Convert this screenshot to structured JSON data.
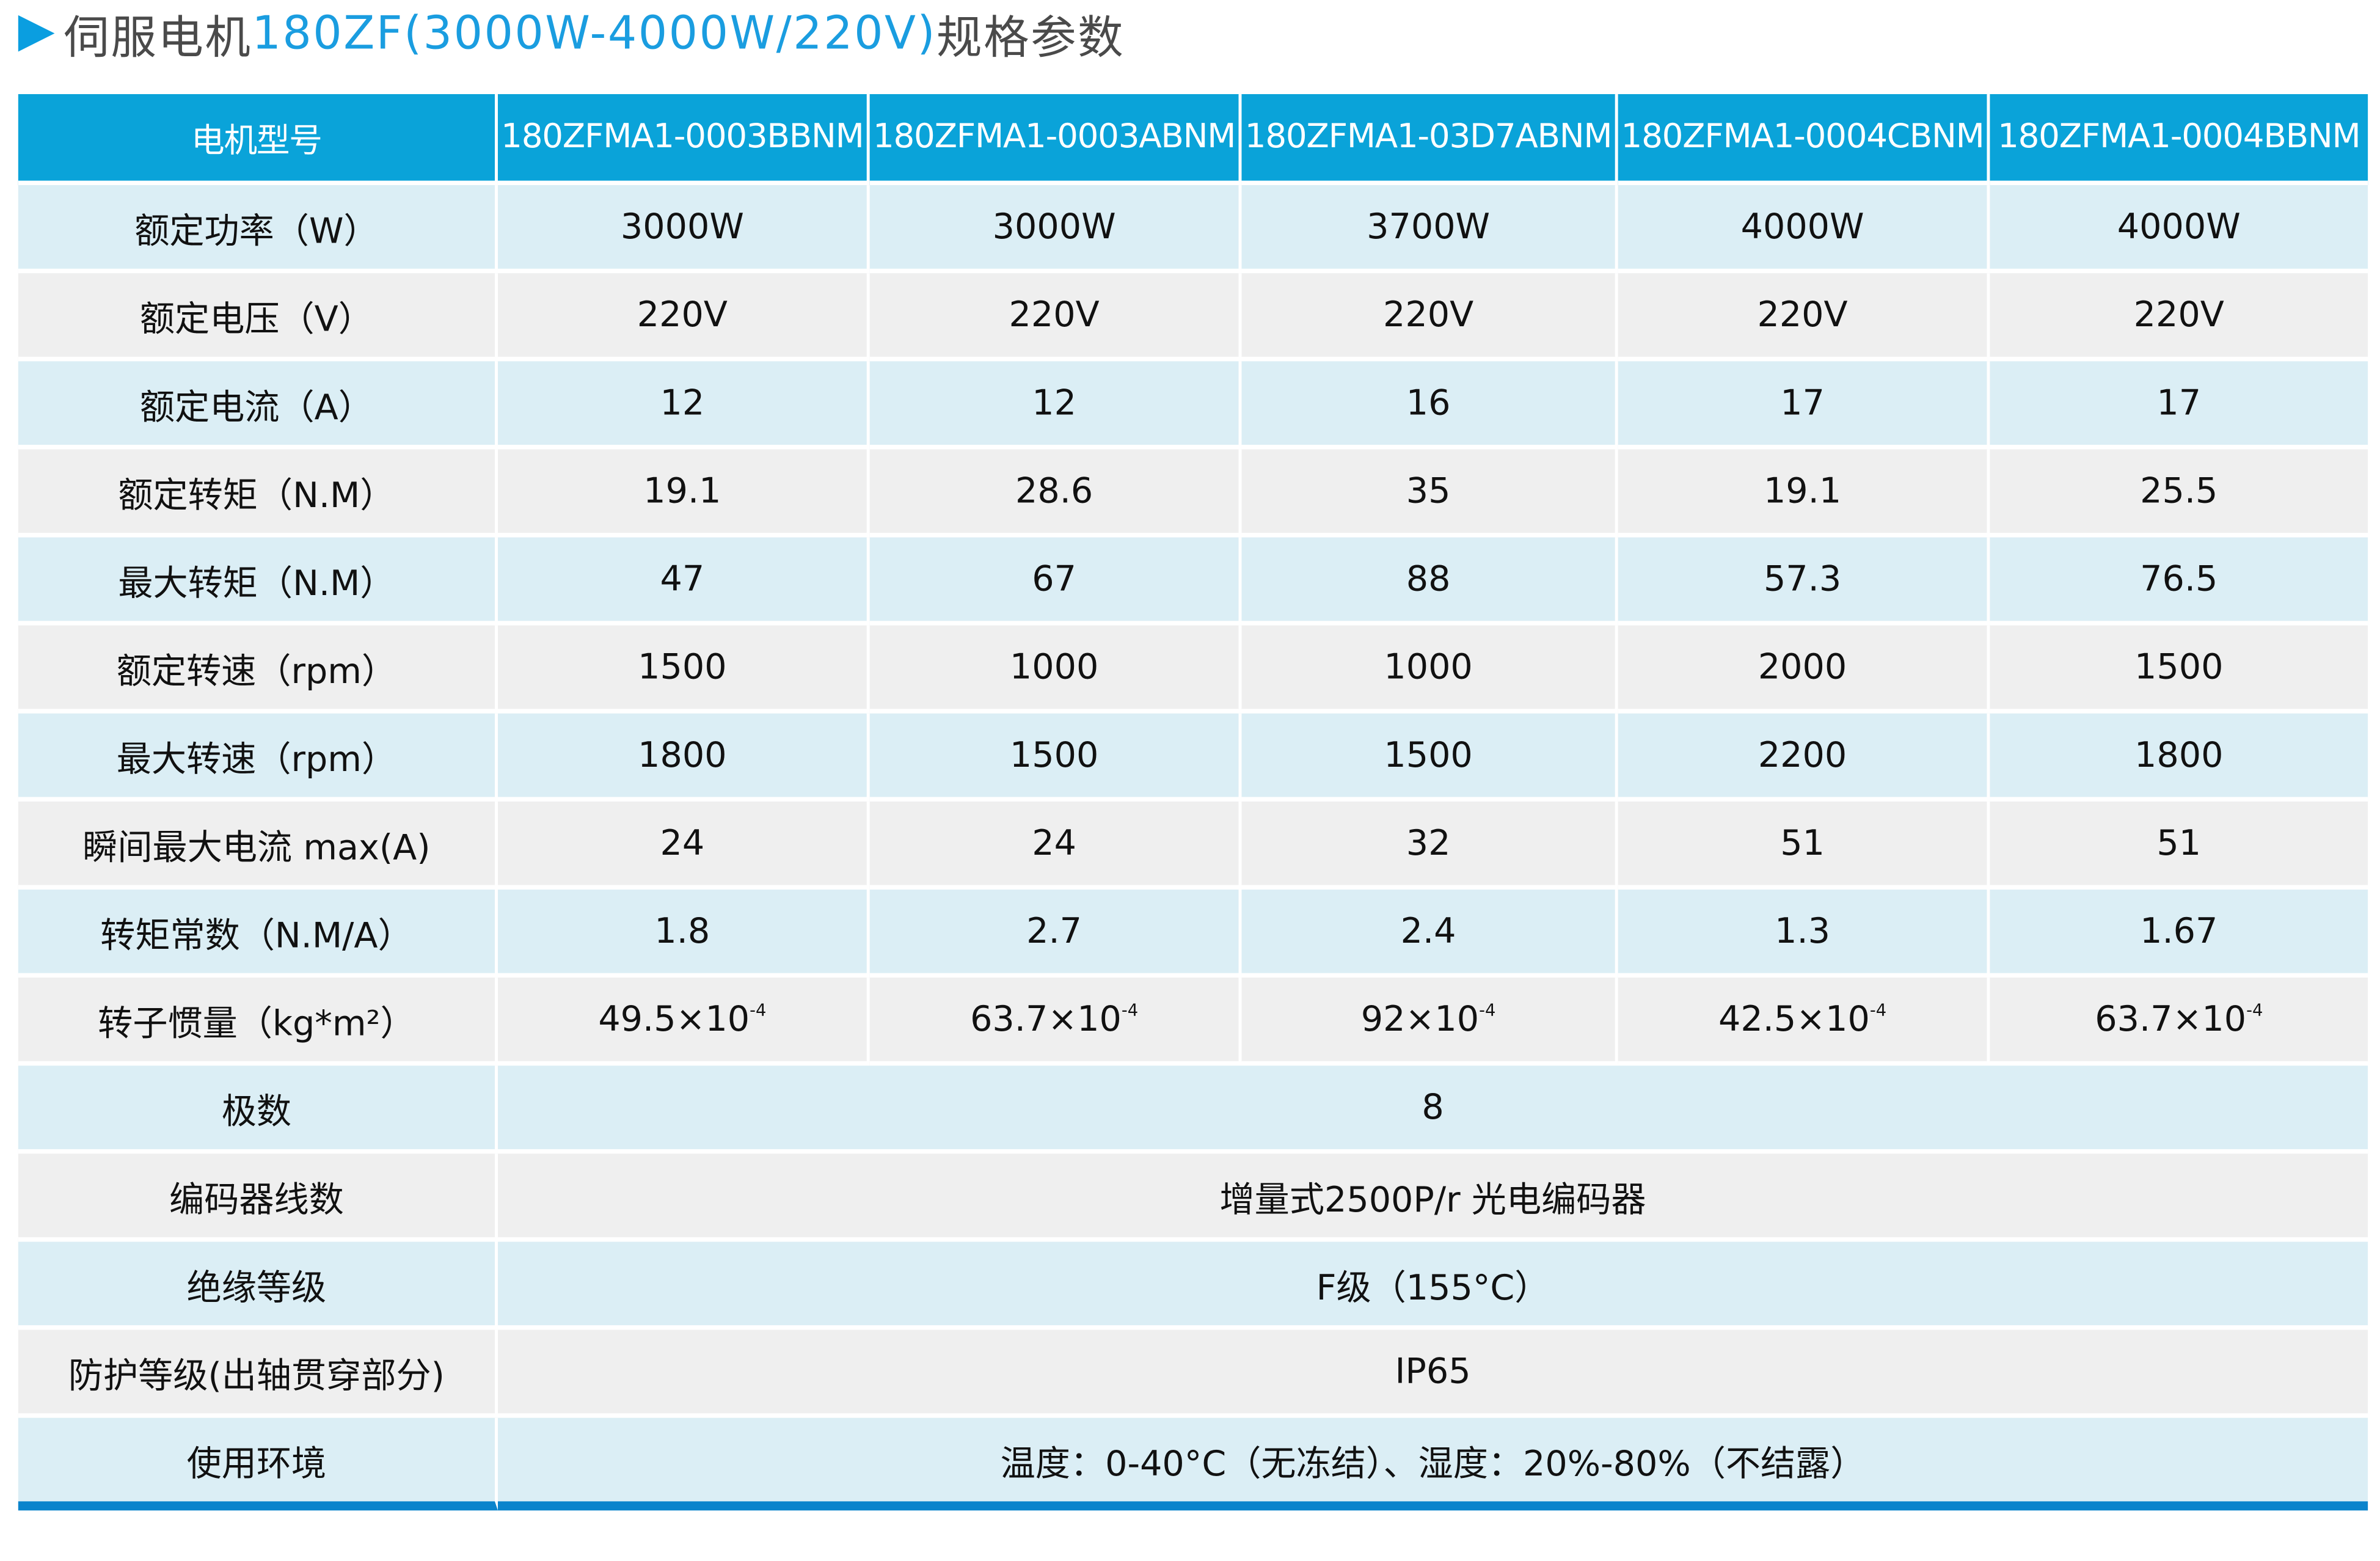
{
  "title": {
    "prefix": "伺服电机",
    "highlight": "180ZF(3000W-4000W/220V)",
    "suffix": "规格参数",
    "arrow_color": "#0a9ee0"
  },
  "colors": {
    "header": "#0aa3d9",
    "row_blue": "#dbeef5",
    "row_gray": "#efefef",
    "bottom_bar": "#0a84cc"
  },
  "table": {
    "header": [
      "电机型号",
      "180ZFMA1-0003BBNM",
      "180ZFMA1-0003ABNM",
      "180ZFMA1-03D7ABNM",
      "180ZFMA1-0004CBNM",
      "180ZFMA1-0004BBNM"
    ],
    "rows": [
      {
        "label": "额定功率（W）",
        "values": [
          "3000W",
          "3000W",
          "3700W",
          "4000W",
          "4000W"
        ]
      },
      {
        "label": "额定电压（V）",
        "values": [
          "220V",
          "220V",
          "220V",
          "220V",
          "220V"
        ]
      },
      {
        "label": "额定电流（A）",
        "values": [
          "12",
          "12",
          "16",
          "17",
          "17"
        ]
      },
      {
        "label": "额定转矩（N.M）",
        "values": [
          "19.1",
          "28.6",
          "35",
          "19.1",
          "25.5"
        ]
      },
      {
        "label": "最大转矩（N.M）",
        "values": [
          "47",
          "67",
          "88",
          "57.3",
          "76.5"
        ]
      },
      {
        "label": "额定转速（rpm）",
        "values": [
          "1500",
          "1000",
          "1000",
          "2000",
          "1500"
        ]
      },
      {
        "label": "最大转速（rpm）",
        "values": [
          "1800",
          "1500",
          "1500",
          "2200",
          "1800"
        ]
      },
      {
        "label": "瞬间最大电流 max(A)",
        "values": [
          "24",
          "24",
          "32",
          "51",
          "51"
        ]
      },
      {
        "label": "转矩常数（N.M/A）",
        "values": [
          "1.8",
          "2.7",
          "2.4",
          "1.3",
          "1.67"
        ]
      },
      {
        "label": "转子惯量（kg*m²）",
        "values": [
          "49.5×10",
          "63.7×10",
          "92×10",
          "42.5×10",
          "63.7×10"
        ],
        "exponent": "-4"
      }
    ],
    "merged_rows": [
      {
        "label": "极数",
        "value": "8"
      },
      {
        "label": "编码器线数",
        "value": "增量式2500P/r 光电编码器"
      },
      {
        "label": "绝缘等级",
        "value": "F级（155°C）"
      },
      {
        "label": "防护等级(出轴贯穿部分)",
        "value": "IP65"
      },
      {
        "label": "使用环境",
        "value": "温度：0-40°C（无冻结）、湿度：20%-80%（不结露）"
      }
    ]
  }
}
